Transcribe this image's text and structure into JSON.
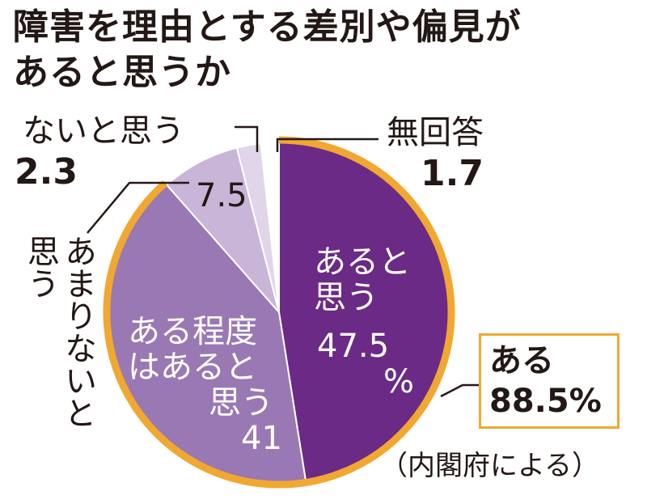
{
  "title": {
    "line1": "障害を理由とする差別や偏見が",
    "line2": "あると思うか"
  },
  "chart_data": {
    "type": "pie",
    "unit": "%",
    "slices": [
      {
        "label": "あると思う",
        "value": 47.5,
        "value_label": "47.5%",
        "color": "#6b2a86"
      },
      {
        "label": "ある程度はあると思う",
        "value": 41,
        "value_label": "41",
        "color": "#9a78b4"
      },
      {
        "label": "あまりないと思う",
        "value": 7.5,
        "value_label": "7.5",
        "color": "#c9b5d8"
      },
      {
        "label": "ないと思う",
        "value": 2.3,
        "value_label": "2.3",
        "color": "#e1d6e9"
      },
      {
        "label": "無回答",
        "value": 1.7,
        "value_label": "1.7",
        "color": "#ffffff"
      }
    ],
    "highlight": {
      "label": "ある",
      "value": 88.5,
      "value_label": "88.5%",
      "ring_color": "#f0a830"
    }
  },
  "labels": {
    "aru_1": "あると",
    "aru_2": "思う",
    "aru_value": "47.5",
    "aru_pct": "%",
    "teido_1": "ある程度",
    "teido_2": "はあると",
    "teido_3": "思う",
    "teido_value": "41",
    "amari_1": "あまりないと",
    "amari_2": "思う",
    "amari_value": "7.5",
    "nai_label": "ないと思う",
    "nai_value": "2.3",
    "mukaitou_label": "無回答",
    "mukaitou_value": "1.7",
    "callout_1": "ある",
    "callout_2": "88.5%"
  },
  "source": "（内閣府による）"
}
